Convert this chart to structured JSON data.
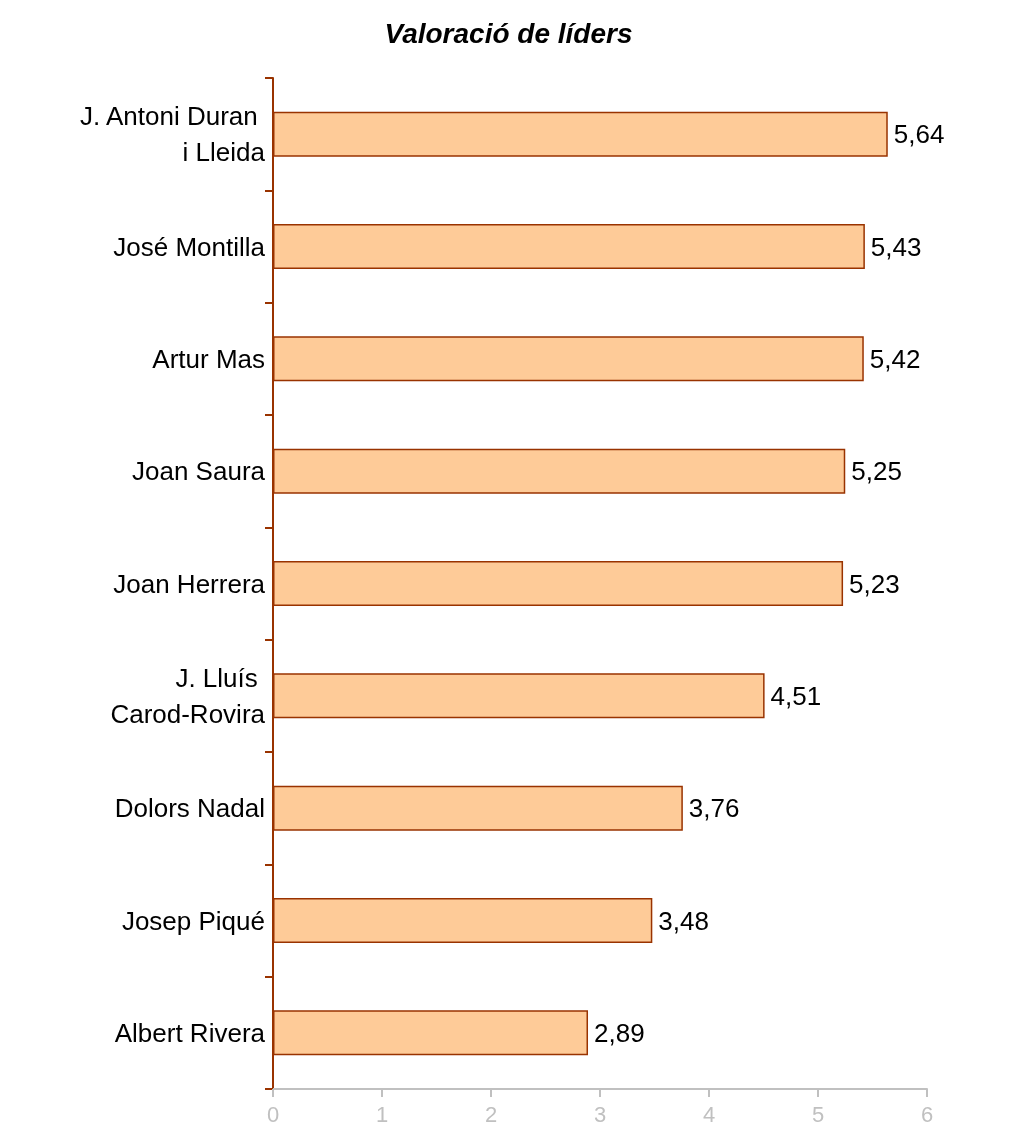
{
  "chart_data": {
    "type": "bar",
    "orientation": "horizontal",
    "title": "Valoració de líders",
    "categories": [
      "J. Antoni Duran i Lleida",
      "José Montilla",
      "Artur Mas",
      "Joan Saura",
      "Joan Herrera",
      "J. Lluís Carod-Rovira",
      "Dolors Nadal",
      "Josep Piqué",
      "Albert Rivera"
    ],
    "values": [
      5.64,
      5.43,
      5.42,
      5.25,
      5.23,
      4.51,
      3.76,
      3.48,
      2.89
    ],
    "value_labels": [
      "5,64",
      "5,43",
      "5,42",
      "5,25",
      "5,23",
      "4,51",
      "3,76",
      "3,48",
      "2,89"
    ],
    "color": "#fecb98",
    "xlim": [
      0,
      6
    ],
    "xticks": [
      0,
      1,
      2,
      3,
      4,
      5,
      6
    ],
    "grid": false
  }
}
